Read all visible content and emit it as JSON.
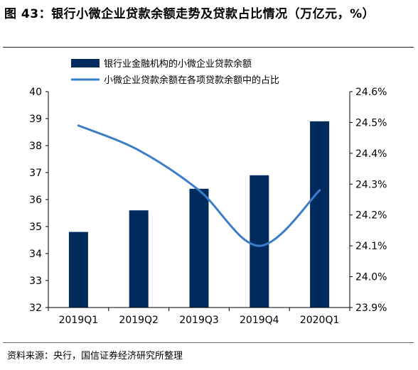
{
  "figure": {
    "title": "图 43：银行小微企业贷款余额走势及贷款占比情况（万亿元，%）",
    "source": "资料来源：央行，国信证券经济研究所整理"
  },
  "chart_data": {
    "type": "bar",
    "categories": [
      "2019Q1",
      "2019Q2",
      "2019Q3",
      "2019Q4",
      "2020Q1"
    ],
    "series": [
      {
        "name": "银行业金融机构的小微企业贷款余额",
        "type": "bar",
        "axis": "left",
        "color": "#002B5C",
        "values": [
          34.8,
          35.6,
          36.4,
          36.9,
          38.9
        ]
      },
      {
        "name": "小微企业贷款余额在各项贷款余额中的占比",
        "type": "line",
        "axis": "right",
        "color": "#3D7DC8",
        "values": [
          24.49,
          24.41,
          24.28,
          24.1,
          24.28
        ]
      }
    ],
    "y_left": {
      "min": 32,
      "max": 40,
      "ticks": [
        "32",
        "33",
        "34",
        "35",
        "36",
        "37",
        "38",
        "39",
        "40"
      ]
    },
    "y_right": {
      "min": 23.9,
      "max": 24.6,
      "ticks": [
        "23.9%",
        "24.0%",
        "24.1%",
        "24.2%",
        "24.3%",
        "24.4%",
        "24.5%",
        "24.6%"
      ]
    },
    "legend_position": "top",
    "grid": false
  }
}
